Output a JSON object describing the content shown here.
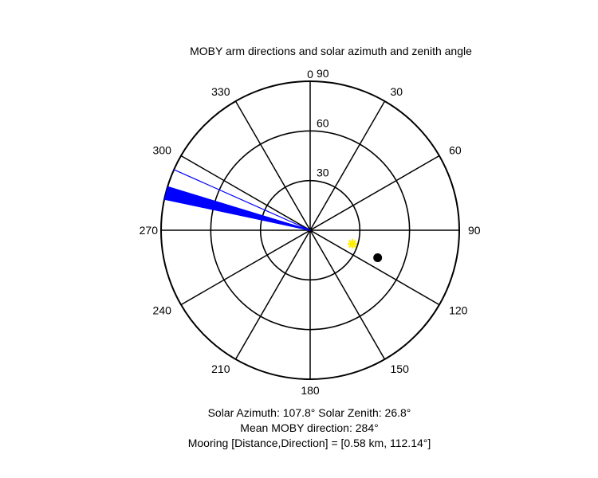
{
  "chart_data": {
    "type": "polar",
    "title": "MOBY arm directions and solar azimuth and zenith angle",
    "angle_ticks": [
      "0",
      "30",
      "60",
      "90",
      "120",
      "150",
      "180",
      "210",
      "240",
      "270",
      "300",
      "330"
    ],
    "angle_tick_values": [
      0,
      30,
      60,
      90,
      120,
      150,
      180,
      210,
      240,
      270,
      300,
      330
    ],
    "radial_ticks": [
      "30",
      "60",
      "90"
    ],
    "radial_tick_values": [
      30,
      60,
      90
    ],
    "rlim": [
      0,
      90
    ],
    "angle_zero": "top",
    "angle_direction": "clockwise",
    "grid": true,
    "arm_directions": {
      "color": "#0000ff",
      "fan_from_deg": 282,
      "fan_to_deg": 287,
      "fan_step_deg": 0.25,
      "extra_line_deg": 294,
      "radius": 90
    },
    "sun": {
      "azimuth_deg": 107.8,
      "zenith_deg": 26.8,
      "color": "#ffee00",
      "marker": "asterisk"
    },
    "mooring": {
      "direction_deg": 112.14,
      "plot_radius": 44,
      "color": "#000000",
      "marker": "dot"
    },
    "annotations": [
      "Solar Azimuth: 107.8°   Solar Zenith: 26.8°",
      "Mean MOBY direction: 284°",
      "Mooring [Distance,Direction] = [0.58 km, 112.14°]"
    ]
  }
}
